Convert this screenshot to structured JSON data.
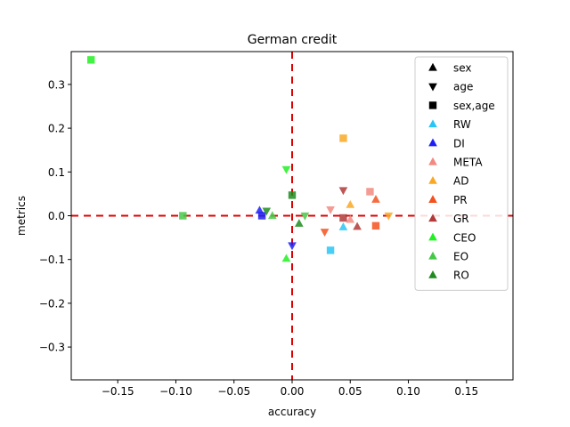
{
  "chart_data": {
    "type": "scatter",
    "title": "German credit",
    "xlabel": "accuracy",
    "ylabel": "metrics",
    "xlim": [
      -0.19,
      0.19
    ],
    "ylim": [
      -0.375,
      0.375
    ],
    "xticks": [
      -0.15,
      -0.1,
      -0.05,
      0.0,
      0.05,
      0.1,
      0.15
    ],
    "xtick_labels": [
      "−0.15",
      "−0.10",
      "−0.05",
      "0.00",
      "0.05",
      "0.10",
      "0.15"
    ],
    "yticks": [
      -0.3,
      -0.2,
      -0.1,
      0.0,
      0.1,
      0.2,
      0.3
    ],
    "ytick_labels": [
      "−0.3",
      "−0.2",
      "−0.1",
      "0.0",
      "0.1",
      "0.2",
      "0.3"
    ],
    "grid": false,
    "reference_lines": {
      "x": 0,
      "y": 0,
      "color": "#e00000",
      "style": "dashed"
    },
    "legend": {
      "position": "right",
      "markers": [
        {
          "label": "sex",
          "marker": "triangle-up",
          "color": "#000000"
        },
        {
          "label": "age",
          "marker": "triangle-down",
          "color": "#000000"
        },
        {
          "label": "sex,age",
          "marker": "square",
          "color": "#000000"
        }
      ],
      "methods": [
        {
          "label": "RW",
          "color": "#29c5f6"
        },
        {
          "label": "DI",
          "color": "#1f1ff5"
        },
        {
          "label": "META",
          "color": "#f28a80"
        },
        {
          "label": "AD",
          "color": "#f9a825"
        },
        {
          "label": "PR",
          "color": "#f4511e"
        },
        {
          "label": "GR",
          "color": "#b23a3a"
        },
        {
          "label": "CEO",
          "color": "#22f022"
        },
        {
          "label": "EO",
          "color": "#46c846"
        },
        {
          "label": "RO",
          "color": "#1f8c1f"
        }
      ]
    },
    "series": [
      {
        "method": "RW",
        "points": [
          {
            "x": 0.044,
            "y": -0.026,
            "marker": "triangle-up"
          },
          {
            "x": 0.033,
            "y": -0.079,
            "marker": "square"
          }
        ]
      },
      {
        "method": "DI",
        "points": [
          {
            "x": -0.028,
            "y": 0.012,
            "marker": "triangle-up"
          },
          {
            "x": 0.0,
            "y": -0.068,
            "marker": "triangle-down"
          },
          {
            "x": -0.026,
            "y": 0.0,
            "marker": "square"
          }
        ]
      },
      {
        "method": "META",
        "points": [
          {
            "x": 0.05,
            "y": -0.009,
            "marker": "triangle-up"
          },
          {
            "x": 0.033,
            "y": 0.014,
            "marker": "triangle-down"
          },
          {
            "x": 0.067,
            "y": 0.055,
            "marker": "square"
          }
        ]
      },
      {
        "method": "AD",
        "points": [
          {
            "x": 0.05,
            "y": 0.025,
            "marker": "triangle-up"
          },
          {
            "x": 0.083,
            "y": 0.0,
            "marker": "triangle-down"
          },
          {
            "x": 0.044,
            "y": 0.177,
            "marker": "square"
          }
        ]
      },
      {
        "method": "PR",
        "points": [
          {
            "x": 0.072,
            "y": 0.037,
            "marker": "triangle-up"
          },
          {
            "x": 0.028,
            "y": -0.037,
            "marker": "triangle-down"
          },
          {
            "x": 0.072,
            "y": -0.023,
            "marker": "square"
          }
        ]
      },
      {
        "method": "GR",
        "points": [
          {
            "x": 0.056,
            "y": -0.025,
            "marker": "triangle-up"
          },
          {
            "x": 0.044,
            "y": 0.058,
            "marker": "triangle-down"
          },
          {
            "x": 0.044,
            "y": -0.005,
            "marker": "square"
          }
        ]
      },
      {
        "method": "CEO",
        "points": [
          {
            "x": -0.005,
            "y": -0.098,
            "marker": "triangle-up"
          },
          {
            "x": -0.005,
            "y": 0.106,
            "marker": "triangle-down"
          },
          {
            "x": -0.173,
            "y": 0.356,
            "marker": "square"
          }
        ]
      },
      {
        "method": "EO",
        "points": [
          {
            "x": -0.017,
            "y": 0.0,
            "marker": "triangle-up"
          },
          {
            "x": 0.011,
            "y": 0.0,
            "marker": "triangle-down"
          },
          {
            "x": -0.094,
            "y": 0.0,
            "marker": "square"
          }
        ]
      },
      {
        "method": "RO",
        "points": [
          {
            "x": 0.006,
            "y": -0.018,
            "marker": "triangle-up"
          },
          {
            "x": -0.022,
            "y": 0.011,
            "marker": "triangle-down"
          },
          {
            "x": 0.0,
            "y": 0.047,
            "marker": "square"
          }
        ]
      }
    ]
  }
}
